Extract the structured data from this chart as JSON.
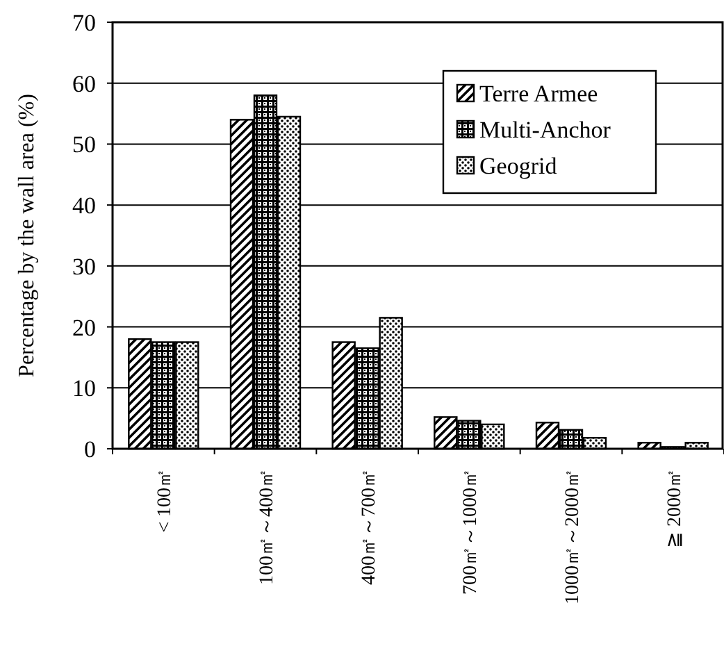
{
  "chart_data": {
    "type": "bar",
    "ylabel": "Percentage by the wall area (%)",
    "categories": [
      "< 100㎡",
      "100㎡～400㎡",
      "400㎡～700㎡",
      "700㎡～1000㎡",
      "1000㎡～2000㎡",
      "≧ 2000㎡"
    ],
    "series": [
      {
        "name": "Terre Armee",
        "color": "#000000",
        "values": [
          18,
          54,
          17.5,
          5.2,
          4.3,
          1
        ]
      },
      {
        "name": "Multi-Anchor",
        "color": "#000000",
        "values": [
          17.5,
          58,
          16.5,
          4.6,
          3.1,
          0.3
        ]
      },
      {
        "name": "Geogrid",
        "color": "#000000",
        "values": [
          17.5,
          54.5,
          21.5,
          4,
          1.8,
          1
        ]
      }
    ],
    "ylim": [
      0,
      70
    ],
    "yticks": [
      0,
      10,
      20,
      30,
      40,
      50,
      60,
      70
    ],
    "grid": "y",
    "legend": "top right"
  }
}
